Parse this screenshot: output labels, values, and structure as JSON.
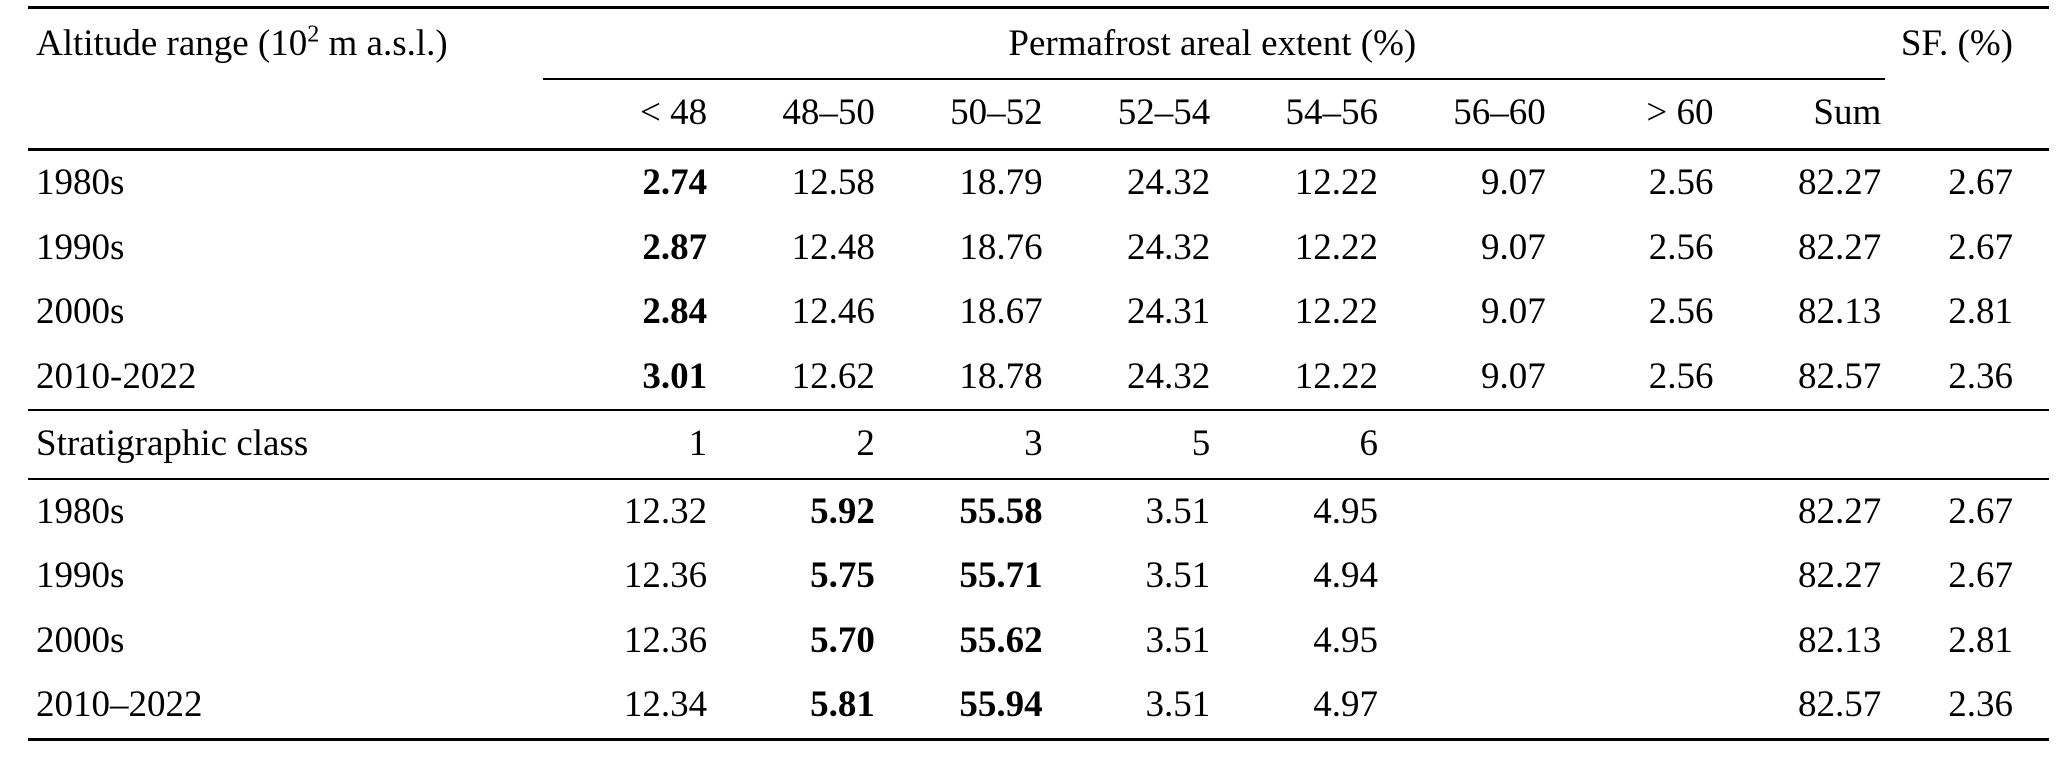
{
  "table": {
    "header": {
      "altitude_label": {
        "prefix": "Altitude range (10",
        "sup": "2",
        "suffix": " m a.s.l.)"
      },
      "span_label": "Permafrost areal extent (%)",
      "sf_label": "SF. (%)",
      "columns": [
        "< 48",
        "48–50",
        "50–52",
        "52–54",
        "54–56",
        "56–60",
        "> 60",
        "Sum"
      ]
    },
    "altitude_rows": [
      {
        "label": "1980s",
        "values": [
          "2.74",
          "12.58",
          "18.79",
          "24.32",
          "12.22",
          "9.07",
          "2.56",
          "82.27"
        ],
        "bold": [
          0
        ],
        "sf": "2.67"
      },
      {
        "label": "1990s",
        "values": [
          "2.87",
          "12.48",
          "18.76",
          "24.32",
          "12.22",
          "9.07",
          "2.56",
          "82.27"
        ],
        "bold": [
          0
        ],
        "sf": "2.67"
      },
      {
        "label": "2000s",
        "values": [
          "2.84",
          "12.46",
          "18.67",
          "24.31",
          "12.22",
          "9.07",
          "2.56",
          "82.13"
        ],
        "bold": [
          0
        ],
        "sf": "2.81"
      },
      {
        "label": "2010-2022",
        "values": [
          "3.01",
          "12.62",
          "18.78",
          "24.32",
          "12.22",
          "9.07",
          "2.56",
          "82.57"
        ],
        "bold": [
          0
        ],
        "sf": "2.36"
      }
    ],
    "strat_header_rows": [
      {
        "label": "Stratigraphic class",
        "values": [
          "1",
          "2",
          "3",
          "5",
          "6",
          "",
          "",
          ""
        ],
        "bold": [],
        "sf": ""
      }
    ],
    "strat_rows": [
      {
        "label": "1980s",
        "values": [
          "12.32",
          "5.92",
          "55.58",
          "3.51",
          "4.95",
          "",
          "",
          "82.27"
        ],
        "bold": [
          1,
          2
        ],
        "sf": "2.67"
      },
      {
        "label": "1990s",
        "values": [
          "12.36",
          "5.75",
          "55.71",
          "3.51",
          "4.94",
          "",
          "",
          "82.27"
        ],
        "bold": [
          1,
          2
        ],
        "sf": "2.67"
      },
      {
        "label": "2000s",
        "values": [
          "12.36",
          "5.70",
          "55.62",
          "3.51",
          "4.95",
          "",
          "",
          "82.13"
        ],
        "bold": [
          1,
          2
        ],
        "sf": "2.81"
      },
      {
        "label": "2010–2022",
        "values": [
          "12.34",
          "5.81",
          "55.94",
          "3.51",
          "4.97",
          "",
          "",
          "82.57"
        ],
        "bold": [
          1,
          2
        ],
        "sf": "2.36"
      }
    ]
  }
}
